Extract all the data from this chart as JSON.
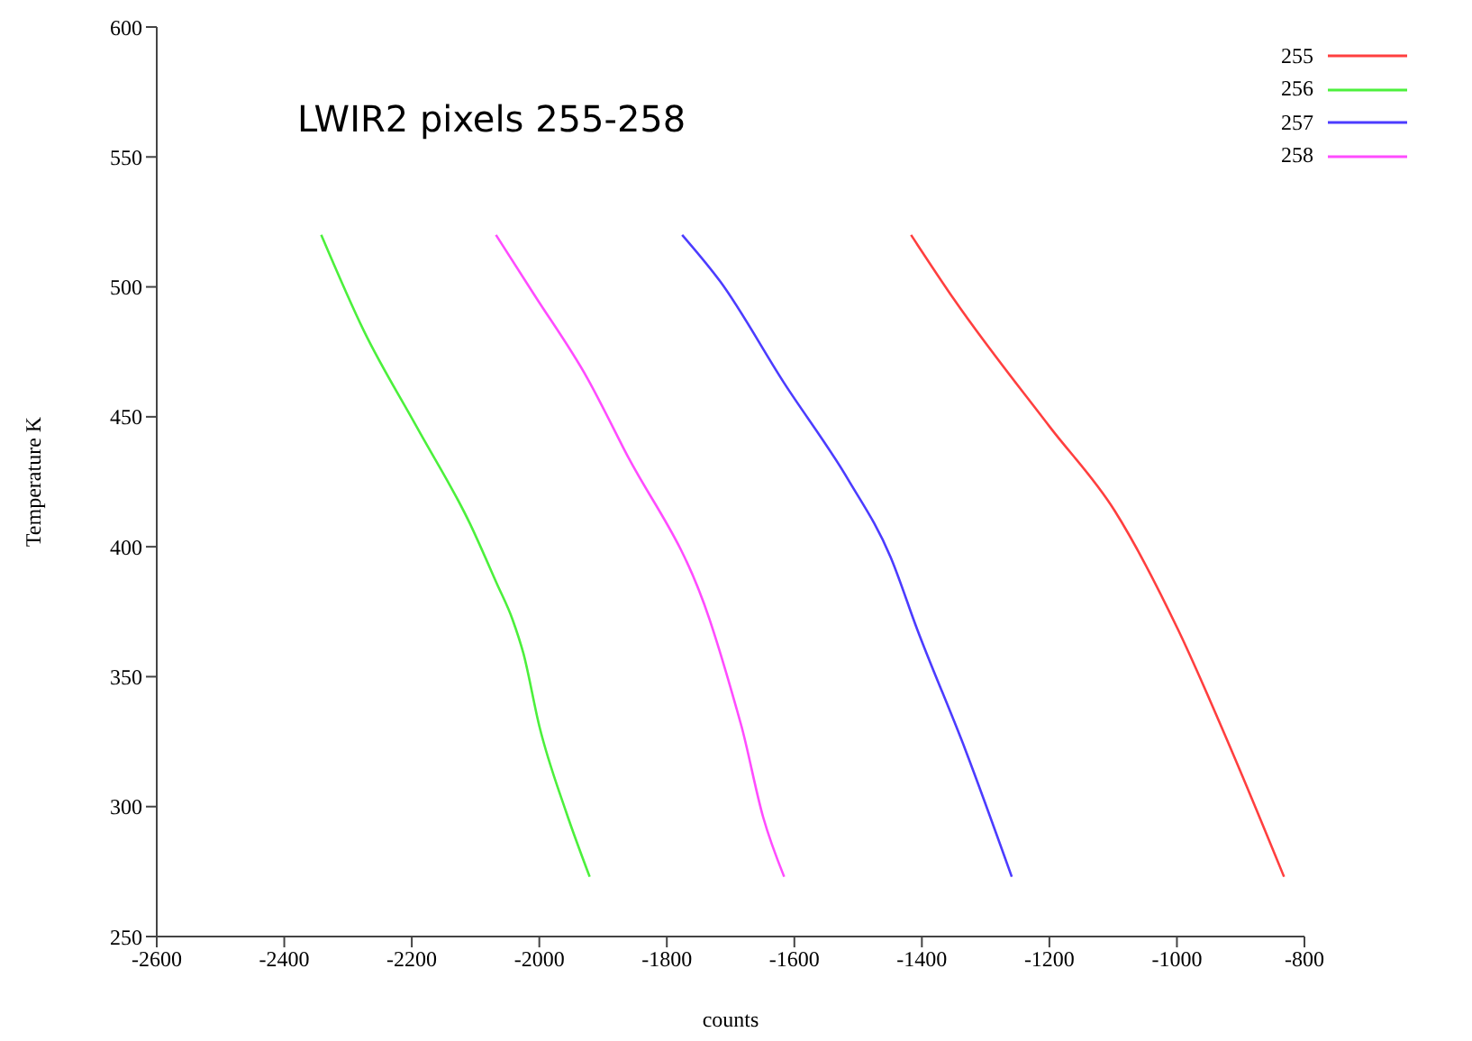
{
  "chart_data": {
    "type": "line",
    "title": "LWIR2 pixels 255-258",
    "xlabel": "counts",
    "ylabel": "Temperature K",
    "xlim": [
      -2600,
      -800
    ],
    "xticks": [
      -2600,
      -2400,
      -2200,
      -2000,
      -1800,
      -1600,
      -1400,
      -1200,
      -1000,
      -800
    ],
    "ylim": [
      250,
      600
    ],
    "yticks": [
      250,
      300,
      350,
      400,
      450,
      500,
      550,
      600
    ],
    "grid": false,
    "legend": "top right",
    "marker": "none",
    "line_style": "solid",
    "series": [
      {
        "name": "255",
        "color": "#ff3f3f",
        "x": [
          -1417,
          -1349,
          -1199,
          -1098,
          -998,
          -915,
          -832
        ],
        "values": [
          520,
          495,
          446,
          414,
          368,
          322,
          273
        ]
      },
      {
        "name": "256",
        "color": "#4cf03c",
        "x": [
          -2342,
          -2275,
          -2192,
          -2109,
          -2067,
          -2042,
          -2025,
          -2000,
          -1958,
          -1921
        ],
        "values": [
          520,
          483,
          446,
          409,
          386,
          372,
          359,
          331,
          298,
          273
        ]
      },
      {
        "name": "257",
        "color": "#4c3cff",
        "x": [
          -1776,
          -1716,
          -1616,
          -1516,
          -1449,
          -1407,
          -1332,
          -1259
        ],
        "values": [
          520,
          502,
          463,
          426,
          396,
          368,
          322,
          273
        ]
      },
      {
        "name": "258",
        "color": "#ff4cff",
        "x": [
          -2068,
          -2008,
          -1925,
          -1866,
          -1733,
          -1691,
          -1683,
          -1649,
          -1616
        ],
        "values": [
          520,
          497,
          465,
          437,
          372,
          338,
          331,
          296,
          273
        ]
      }
    ]
  }
}
